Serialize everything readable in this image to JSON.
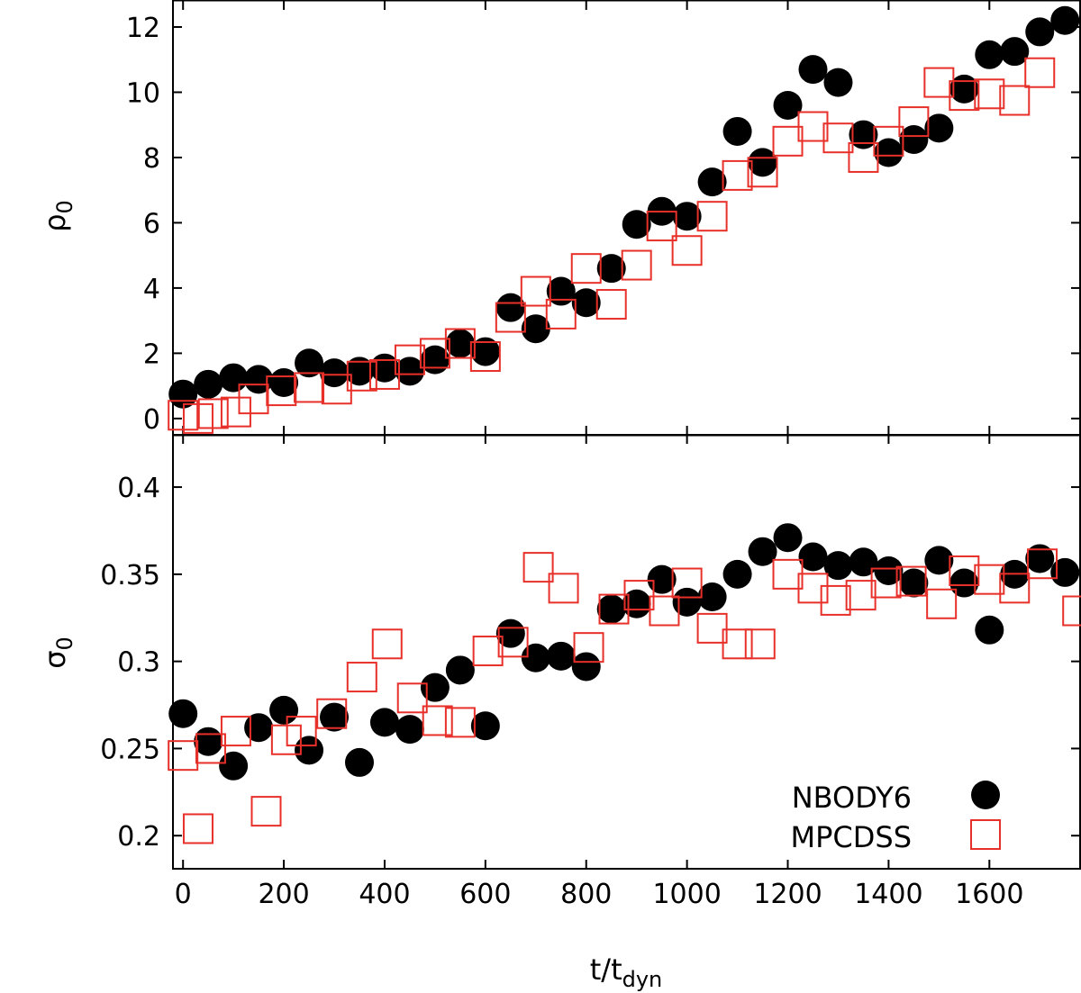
{
  "chart_data": [
    {
      "type": "scatter",
      "panel": "top",
      "ylabel_main": "ρ",
      "ylabel_sub": "0",
      "xlim": [
        -20,
        1780
      ],
      "ylim": [
        -0.5,
        12.8
      ],
      "yticks": [
        0,
        2,
        4,
        6,
        8,
        10,
        12
      ],
      "ytick_labels": [
        "0",
        "2",
        "4",
        "6",
        "8",
        "10",
        "12"
      ],
      "series": [
        {
          "name": "NBODY6",
          "marker": "filled-circle",
          "color": "#000000",
          "x": [
            0,
            50,
            100,
            150,
            200,
            250,
            300,
            350,
            400,
            450,
            500,
            550,
            600,
            650,
            700,
            750,
            800,
            850,
            900,
            950,
            1000,
            1050,
            1100,
            1150,
            1200,
            1250,
            1300,
            1350,
            1400,
            1450,
            1500,
            1550,
            1600,
            1650,
            1700,
            1750
          ],
          "y": [
            0.75,
            1.05,
            1.25,
            1.2,
            1.1,
            1.7,
            1.4,
            1.45,
            1.55,
            1.45,
            1.8,
            2.3,
            2.05,
            3.4,
            2.75,
            3.9,
            3.55,
            4.6,
            5.95,
            6.35,
            6.2,
            7.25,
            8.8,
            7.85,
            9.6,
            10.7,
            10.3,
            8.7,
            8.15,
            8.55,
            8.9,
            10.1,
            11.15,
            11.25,
            11.85,
            12.2
          ]
        },
        {
          "name": "MPCDSS",
          "marker": "open-square",
          "color": "#e8302a",
          "x": [
            0,
            30,
            60,
            105,
            140,
            195,
            250,
            305,
            355,
            400,
            450,
            500,
            550,
            600,
            650,
            700,
            750,
            800,
            850,
            900,
            950,
            1000,
            1050,
            1100,
            1150,
            1200,
            1250,
            1300,
            1350,
            1400,
            1450,
            1500,
            1550,
            1600,
            1650,
            1700
          ],
          "y": [
            0.1,
            0.0,
            0.15,
            0.2,
            0.6,
            0.85,
            0.95,
            0.9,
            1.3,
            1.35,
            1.8,
            2.0,
            2.3,
            1.9,
            3.1,
            3.9,
            3.2,
            4.6,
            3.5,
            4.7,
            5.9,
            5.15,
            6.2,
            7.45,
            7.55,
            8.5,
            8.95,
            8.6,
            8.0,
            8.5,
            9.1,
            10.3,
            9.9,
            9.95,
            9.75,
            10.6
          ]
        }
      ]
    },
    {
      "type": "scatter",
      "panel": "bottom",
      "ylabel_main": "σ",
      "ylabel_sub": "0",
      "xlabel_main": "t/t",
      "xlabel_sub": "dyn",
      "xlim": [
        -20,
        1780
      ],
      "ylim": [
        0.181,
        0.43
      ],
      "yticks": [
        0.2,
        0.25,
        0.3,
        0.35,
        0.4
      ],
      "ytick_labels": [
        "0.2",
        "0.25",
        "0.3",
        "0.35",
        "0.4"
      ],
      "xticks": [
        0,
        200,
        400,
        600,
        800,
        1000,
        1200,
        1400,
        1600
      ],
      "xtick_labels": [
        "0",
        "200",
        "400",
        "600",
        "800",
        "1000",
        "1200",
        "1400",
        "1600"
      ],
      "legend_position": "bottom-right",
      "series": [
        {
          "name": "NBODY6",
          "marker": "filled-circle",
          "color": "#000000",
          "x": [
            0,
            50,
            100,
            150,
            200,
            250,
            300,
            350,
            400,
            450,
            500,
            550,
            600,
            650,
            700,
            750,
            800,
            850,
            900,
            950,
            1000,
            1050,
            1100,
            1150,
            1200,
            1250,
            1300,
            1350,
            1400,
            1450,
            1500,
            1550,
            1600,
            1650,
            1700,
            1750
          ],
          "y": [
            0.27,
            0.254,
            0.24,
            0.262,
            0.272,
            0.249,
            0.268,
            0.242,
            0.265,
            0.261,
            0.285,
            0.295,
            0.263,
            0.316,
            0.302,
            0.303,
            0.297,
            0.33,
            0.333,
            0.347,
            0.334,
            0.337,
            0.35,
            0.363,
            0.371,
            0.36,
            0.355,
            0.357,
            0.352,
            0.345,
            0.358,
            0.345,
            0.318,
            0.35,
            0.359,
            0.351
          ]
        },
        {
          "name": "MPCDSS",
          "marker": "open-square",
          "color": "#e8302a",
          "x": [
            0,
            30,
            55,
            105,
            165,
            205,
            235,
            295,
            355,
            405,
            455,
            505,
            550,
            605,
            655,
            705,
            755,
            805,
            855,
            905,
            955,
            1000,
            1050,
            1100,
            1145,
            1200,
            1250,
            1295,
            1345,
            1395,
            1445,
            1505,
            1550,
            1600,
            1650,
            1705,
            1775
          ],
          "y": [
            0.246,
            0.204,
            0.25,
            0.26,
            0.214,
            0.255,
            0.26,
            0.27,
            0.291,
            0.31,
            0.279,
            0.266,
            0.265,
            0.306,
            0.311,
            0.354,
            0.342,
            0.308,
            0.33,
            0.338,
            0.329,
            0.345,
            0.319,
            0.31,
            0.31,
            0.35,
            0.342,
            0.335,
            0.338,
            0.345,
            0.346,
            0.333,
            0.352,
            0.347,
            0.342,
            0.356,
            0.329
          ]
        }
      ]
    }
  ],
  "legend": [
    {
      "label": "NBODY6",
      "marker": "filled-circle",
      "color": "#000000"
    },
    {
      "label": "MPCDSS",
      "marker": "open-square",
      "color": "#e8302a"
    }
  ]
}
